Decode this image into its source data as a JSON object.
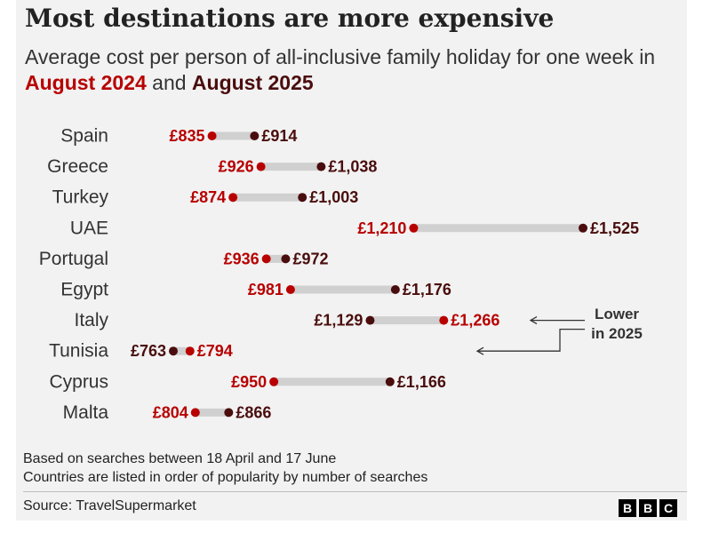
{
  "header": {
    "title": "Most destinations are more expensive",
    "subtitle_prefix": "Average cost per person of all-inclusive family holiday for one week in ",
    "subtitle_year1": "August 2024",
    "subtitle_and": " and ",
    "subtitle_year2": "August 2025"
  },
  "colors": {
    "y2024": "#b80000",
    "y2025": "#4a0d0d",
    "connector": "#d0d0d0",
    "country_label": "#333333",
    "annotation": "#333333"
  },
  "chart_data": {
    "type": "dumbbell",
    "unit": "GBP",
    "series": [
      {
        "name": "August 2024",
        "color": "#b80000"
      },
      {
        "name": "August 2025",
        "color": "#4a0d0d"
      }
    ],
    "rows": [
      {
        "country": "Spain",
        "v2024": 835,
        "v2025": 914,
        "label2024": "£835",
        "label2025": "£914"
      },
      {
        "country": "Greece",
        "v2024": 926,
        "v2025": 1038,
        "label2024": "£926",
        "label2025": "£1,038"
      },
      {
        "country": "Turkey",
        "v2024": 874,
        "v2025": 1003,
        "label2024": "£874",
        "label2025": "£1,003"
      },
      {
        "country": "UAE",
        "v2024": 1210,
        "v2025": 1525,
        "label2024": "£1,210",
        "label2025": "£1,525"
      },
      {
        "country": "Portugal",
        "v2024": 936,
        "v2025": 972,
        "label2024": "£936",
        "label2025": "£972"
      },
      {
        "country": "Egypt",
        "v2024": 981,
        "v2025": 1176,
        "label2024": "£981",
        "label2025": "£1,176"
      },
      {
        "country": "Italy",
        "v2024": 1266,
        "v2025": 1129,
        "label2024": "£1,266",
        "label2025": "£1,129"
      },
      {
        "country": "Tunisia",
        "v2024": 794,
        "v2025": 763,
        "label2024": "£794",
        "label2025": "£763"
      },
      {
        "country": "Cyprus",
        "v2024": 950,
        "v2025": 1166,
        "label2024": "£950",
        "label2025": "£1,166"
      },
      {
        "country": "Malta",
        "v2024": 804,
        "v2025": 866,
        "label2024": "£804",
        "label2025": "£866"
      }
    ],
    "annotation": {
      "lines": [
        "Lower",
        "in 2025"
      ],
      "targets": [
        "Italy",
        "Tunisia"
      ]
    },
    "grid": false,
    "xaxis_visible": false
  },
  "notes": [
    "Based on searches between 18 April and 17 June",
    "Countries are listed in order of popularity by number of searches"
  ],
  "footer": {
    "source": "Source: TravelSupermarket",
    "logo_letters": [
      "B",
      "B",
      "C"
    ]
  }
}
